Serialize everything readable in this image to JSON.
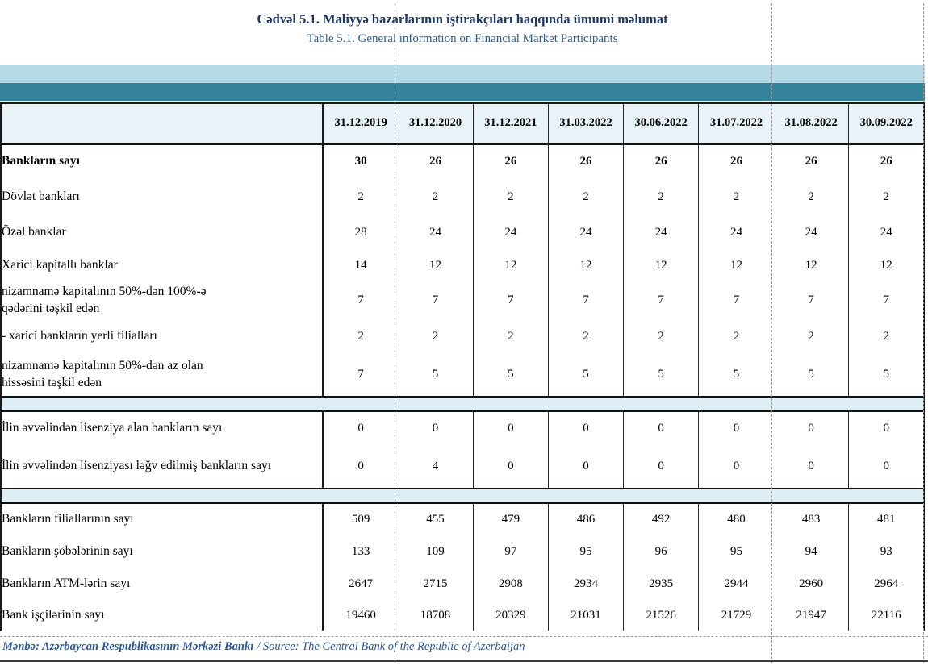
{
  "title": {
    "line1": "Cədvəl 5.1. Maliyyə bazarlarının iştirakçıları haqqında ümumi məlumat",
    "line2": "Table 5.1. General information on Financial Market Participants"
  },
  "table": {
    "date_columns": [
      "31.12.2019",
      "31.12.2020",
      "31.12.2021",
      "31.03.2022",
      "30.06.2022",
      "31.07.2022",
      "31.08.2022",
      "30.09.2022"
    ],
    "sections": [
      {
        "rows": [
          {
            "label": "Bankların sayı",
            "bold": true,
            "indent": 0,
            "values": [
              30,
              26,
              26,
              26,
              26,
              26,
              26,
              26
            ]
          },
          {
            "label": "Dövlət bankları",
            "bold": false,
            "indent": 1,
            "values": [
              2,
              2,
              2,
              2,
              2,
              2,
              2,
              2
            ]
          },
          {
            "label": "Özəl banklar",
            "bold": false,
            "indent": 1,
            "values": [
              28,
              24,
              24,
              24,
              24,
              24,
              24,
              24
            ]
          },
          {
            "label": "Xarici kapitallı banklar",
            "bold": false,
            "indent": 1,
            "values": [
              14,
              12,
              12,
              12,
              12,
              12,
              12,
              12
            ]
          },
          {
            "label": "nizamnamə kapitalının 50%-dən 100%-ə qədərini təşkil edən",
            "bold": false,
            "indent": 2,
            "values": [
              7,
              7,
              7,
              7,
              7,
              7,
              7,
              7
            ]
          },
          {
            "label": "- xarici bankların yerli filialları",
            "bold": false,
            "indent": 3,
            "values": [
              2,
              2,
              2,
              2,
              2,
              2,
              2,
              2
            ]
          },
          {
            "label": "nizamnamə kapitalının 50%-dən az olan hissəsini təşkil edən",
            "bold": false,
            "indent": 2,
            "values": [
              7,
              5,
              5,
              5,
              5,
              5,
              5,
              5
            ]
          }
        ]
      },
      {
        "rows": [
          {
            "label": "İlin əvvəlindən lisenziya alan bankların sayı",
            "bold": false,
            "indent": 4,
            "values": [
              0,
              0,
              0,
              0,
              0,
              0,
              0,
              0
            ]
          },
          {
            "label": "İlin əvvəlindən lisenziyası ləğv edilmiş bankların sayı",
            "bold": false,
            "indent": 4,
            "values": [
              0,
              4,
              0,
              0,
              0,
              0,
              0,
              0
            ]
          }
        ]
      },
      {
        "rows": [
          {
            "label": "Bankların filiallarının sayı",
            "bold": false,
            "indent": 4,
            "values": [
              509,
              455,
              479,
              486,
              492,
              480,
              483,
              481
            ]
          },
          {
            "label": "Bankların şöbələrinin sayı",
            "bold": false,
            "indent": 4,
            "values": [
              133,
              109,
              97,
              95,
              96,
              95,
              94,
              93
            ]
          },
          {
            "label": "Bankların ATM-lərin sayı",
            "bold": false,
            "indent": 4,
            "values": [
              2647,
              2715,
              2908,
              2934,
              2935,
              2944,
              2960,
              2964
            ]
          },
          {
            "label": "Bank işçilərinin sayı",
            "bold": false,
            "indent": 4,
            "values": [
              19460,
              18708,
              20329,
              21031,
              21526,
              21729,
              21947,
              22116
            ]
          }
        ]
      }
    ]
  },
  "footer": {
    "source_az": "Mənbə: Azərbaycan Respublikasının Mərkəzi Bankı",
    "source_en": "/ Source: The Central Bank of the Republic of Azerbaijan"
  },
  "colors": {
    "band_light": "#b5dae6",
    "band_teal": "#34839b",
    "header_bg": "#e9f3f7",
    "separator_bg": "#ddeef4",
    "title_az": "#1f3864",
    "title_en": "#2e5c8e",
    "footer_text": "#2b579a"
  }
}
